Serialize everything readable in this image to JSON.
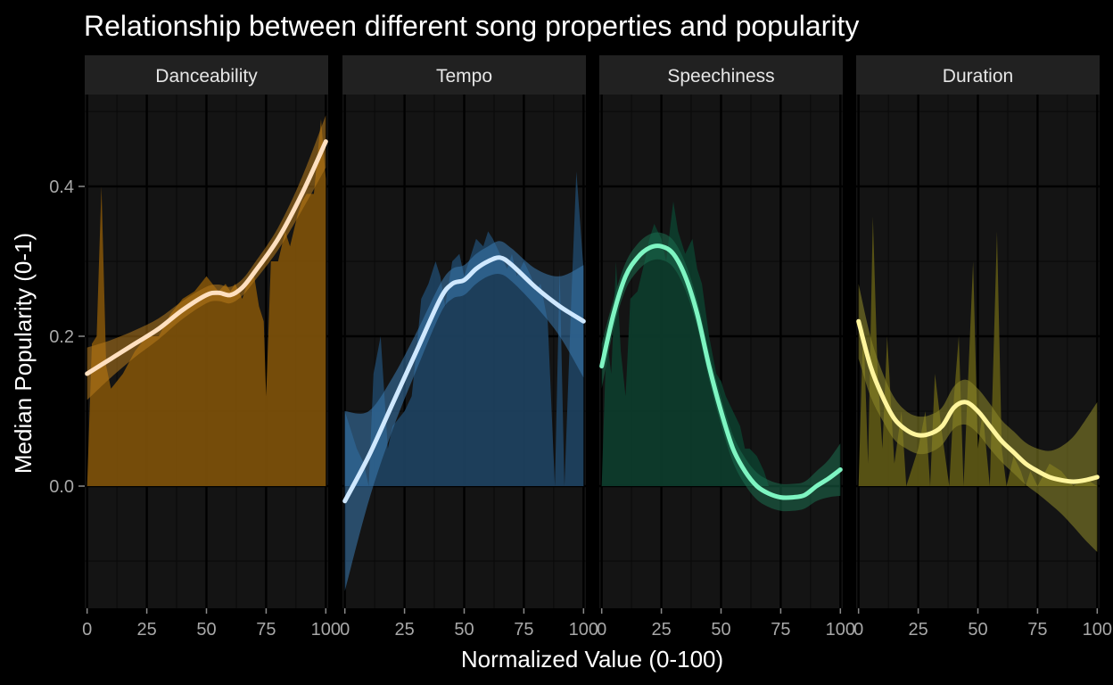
{
  "chart_data": {
    "type": "area",
    "title": "Relationship between different song properties and popularity",
    "xlabel": "Normalized Value (0-100)",
    "ylabel": "Median Popularity (0-1)",
    "xlim": [
      -1,
      101
    ],
    "ylim": [
      -0.16,
      0.52
    ],
    "x_ticks": [
      0,
      25,
      50,
      75,
      100
    ],
    "x_tick_labels": [
      "0",
      "25",
      "50",
      "75",
      "100"
    ],
    "y_ticks": [
      0.0,
      0.2,
      0.4
    ],
    "y_tick_labels": [
      "0.0",
      "0.2",
      "0.4"
    ],
    "grid": true,
    "theme": {
      "background": "#000000",
      "panel": "#141414",
      "strip": "#212121",
      "grid_major": "#000000",
      "grid_minor": "#0b0b0b"
    },
    "panels": [
      {
        "name": "Danceability",
        "fill_color": "#7a4f0a",
        "ribbon_color": "#b77a1b",
        "line_color": "#ffe0c0",
        "area_x": [
          0,
          2,
          4,
          6,
          8,
          10,
          15,
          20,
          25,
          30,
          35,
          40,
          45,
          50,
          55,
          58,
          60,
          62,
          65,
          68,
          70,
          72,
          74,
          75,
          77,
          80,
          83,
          85,
          88,
          90,
          92,
          95,
          98,
          100
        ],
        "area_y": [
          0.0,
          0.19,
          0.2,
          0.4,
          0.16,
          0.13,
          0.15,
          0.18,
          0.2,
          0.2,
          0.23,
          0.25,
          0.26,
          0.28,
          0.26,
          0.27,
          0.26,
          0.27,
          0.25,
          0.28,
          0.28,
          0.24,
          0.22,
          0.12,
          0.3,
          0.3,
          0.34,
          0.32,
          0.36,
          0.38,
          0.39,
          0.39,
          0.49,
          0.41
        ],
        "smooth_x": [
          0,
          10,
          20,
          30,
          40,
          50,
          55,
          60,
          65,
          70,
          80,
          90,
          100
        ],
        "smooth_y": [
          0.15,
          0.17,
          0.19,
          0.21,
          0.235,
          0.255,
          0.258,
          0.255,
          0.265,
          0.285,
          0.33,
          0.39,
          0.46
        ],
        "band_halfwidth": [
          0.035,
          0.025,
          0.018,
          0.014,
          0.012,
          0.011,
          0.011,
          0.011,
          0.011,
          0.012,
          0.015,
          0.022,
          0.035
        ]
      },
      {
        "name": "Tempo",
        "fill_color": "#1e405e",
        "ribbon_color": "#3b7ab0",
        "line_color": "#cfe8ff",
        "area_x": [
          0,
          2,
          5,
          8,
          10,
          12,
          15,
          18,
          20,
          25,
          28,
          30,
          32,
          35,
          38,
          40,
          42,
          45,
          48,
          50,
          52,
          55,
          58,
          60,
          62,
          65,
          68,
          70,
          72,
          75,
          78,
          80,
          82,
          85,
          88,
          90,
          92,
          95,
          97,
          100
        ],
        "area_y": [
          0.1,
          0.08,
          0.05,
          0.03,
          0.0,
          0.15,
          0.2,
          0.05,
          0.08,
          0.1,
          0.12,
          0.18,
          0.25,
          0.27,
          0.3,
          0.28,
          0.24,
          0.3,
          0.31,
          0.28,
          0.3,
          0.33,
          0.32,
          0.34,
          0.33,
          0.31,
          0.29,
          0.31,
          0.28,
          0.3,
          0.28,
          0.26,
          0.27,
          0.22,
          0.0,
          0.29,
          0.0,
          0.26,
          0.42,
          0.29
        ],
        "smooth_x": [
          0,
          10,
          20,
          30,
          40,
          45,
          50,
          55,
          60,
          65,
          70,
          80,
          90,
          100
        ],
        "smooth_y": [
          -0.02,
          0.04,
          0.11,
          0.18,
          0.25,
          0.27,
          0.275,
          0.29,
          0.3,
          0.305,
          0.295,
          0.265,
          0.24,
          0.22
        ],
        "band_halfwidth": [
          0.12,
          0.06,
          0.035,
          0.025,
          0.02,
          0.02,
          0.02,
          0.02,
          0.02,
          0.022,
          0.022,
          0.025,
          0.04,
          0.075
        ]
      },
      {
        "name": "Speechiness",
        "fill_color": "#0d3b2b",
        "ribbon_color": "#1b6e4e",
        "line_color": "#7ef5c2",
        "area_x": [
          0,
          2,
          4,
          6,
          8,
          10,
          12,
          15,
          18,
          20,
          22,
          25,
          27,
          30,
          32,
          35,
          38,
          40,
          42,
          45,
          48,
          50,
          52,
          55,
          58,
          60,
          62,
          65,
          68,
          70
        ],
        "area_y": [
          0.0,
          0.2,
          0.15,
          0.3,
          0.18,
          0.12,
          0.25,
          0.26,
          0.3,
          0.33,
          0.35,
          0.33,
          0.3,
          0.38,
          0.34,
          0.31,
          0.33,
          0.29,
          0.27,
          0.2,
          0.15,
          0.14,
          0.12,
          0.1,
          0.08,
          0.05,
          0.05,
          0.04,
          0.02,
          0.0
        ],
        "smooth_x": [
          0,
          5,
          10,
          15,
          20,
          25,
          30,
          35,
          40,
          45,
          50,
          55,
          60,
          65,
          70,
          75,
          80,
          85,
          90,
          95,
          100
        ],
        "smooth_y": [
          0.16,
          0.23,
          0.28,
          0.305,
          0.318,
          0.32,
          0.31,
          0.28,
          0.23,
          0.16,
          0.1,
          0.05,
          0.02,
          0.0,
          -0.01,
          -0.015,
          -0.015,
          -0.012,
          0.0,
          0.01,
          0.022
        ],
        "band_halfwidth": [
          0.03,
          0.02,
          0.018,
          0.018,
          0.018,
          0.018,
          0.018,
          0.018,
          0.018,
          0.018,
          0.018,
          0.018,
          0.018,
          0.018,
          0.018,
          0.018,
          0.018,
          0.018,
          0.02,
          0.025,
          0.035
        ]
      },
      {
        "name": "Duration",
        "fill_color": "#5a5414",
        "ribbon_color": "#8f8a2a",
        "line_color": "#fff59d",
        "area_x": [
          0,
          2,
          4,
          6,
          8,
          10,
          12,
          15,
          18,
          20,
          22,
          25,
          28,
          30,
          32,
          35,
          38,
          40,
          42,
          44,
          46,
          48,
          50,
          52,
          55,
          58,
          60,
          62,
          65,
          68,
          70,
          72,
          75,
          80,
          85,
          90,
          95,
          100
        ],
        "area_y": [
          0.0,
          0.22,
          0.03,
          0.36,
          0.15,
          0.05,
          0.2,
          0.03,
          0.1,
          0.0,
          0.02,
          0.05,
          0.1,
          0.0,
          0.15,
          0.07,
          0.0,
          0.12,
          0.2,
          0.0,
          0.15,
          0.3,
          0.05,
          0.1,
          0.0,
          0.34,
          0.05,
          0.0,
          0.04,
          0.02,
          0.0,
          0.02,
          0.0,
          0.03,
          0.02,
          0.0,
          0.01,
          0.0
        ],
        "smooth_x": [
          0,
          5,
          10,
          15,
          20,
          25,
          30,
          35,
          40,
          45,
          50,
          55,
          60,
          65,
          70,
          75,
          80,
          85,
          90,
          95,
          100
        ],
        "smooth_y": [
          0.22,
          0.16,
          0.12,
          0.09,
          0.075,
          0.068,
          0.07,
          0.08,
          0.105,
          0.112,
          0.1,
          0.08,
          0.06,
          0.045,
          0.03,
          0.02,
          0.012,
          0.008,
          0.006,
          0.008,
          0.012
        ],
        "band_halfwidth": [
          0.05,
          0.04,
          0.032,
          0.028,
          0.025,
          0.025,
          0.025,
          0.025,
          0.028,
          0.03,
          0.03,
          0.03,
          0.028,
          0.028,
          0.028,
          0.03,
          0.035,
          0.045,
          0.06,
          0.08,
          0.1
        ]
      }
    ]
  }
}
